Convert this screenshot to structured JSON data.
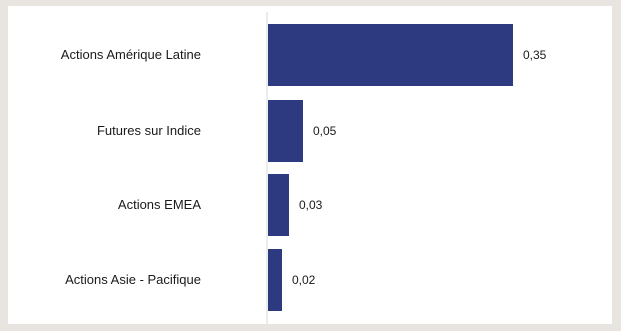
{
  "chart_data": {
    "type": "bar",
    "orientation": "horizontal",
    "categories": [
      "Actions Amérique Latine",
      "Futures sur Indice",
      "Actions EMEA",
      "Actions Asie - Pacifique"
    ],
    "values": [
      0.35,
      0.05,
      0.03,
      0.02
    ],
    "value_labels": [
      "0,35",
      "0,05",
      "0,03",
      "0,02"
    ],
    "title": "",
    "xlabel": "",
    "ylabel": "",
    "xlim": [
      0,
      0.35
    ],
    "grid": false,
    "legend": "none",
    "colors": {
      "bar": "#2e3a80",
      "axis": "#d9d9d9",
      "background": "#ffffff",
      "frame": "#e8e5e0"
    }
  }
}
